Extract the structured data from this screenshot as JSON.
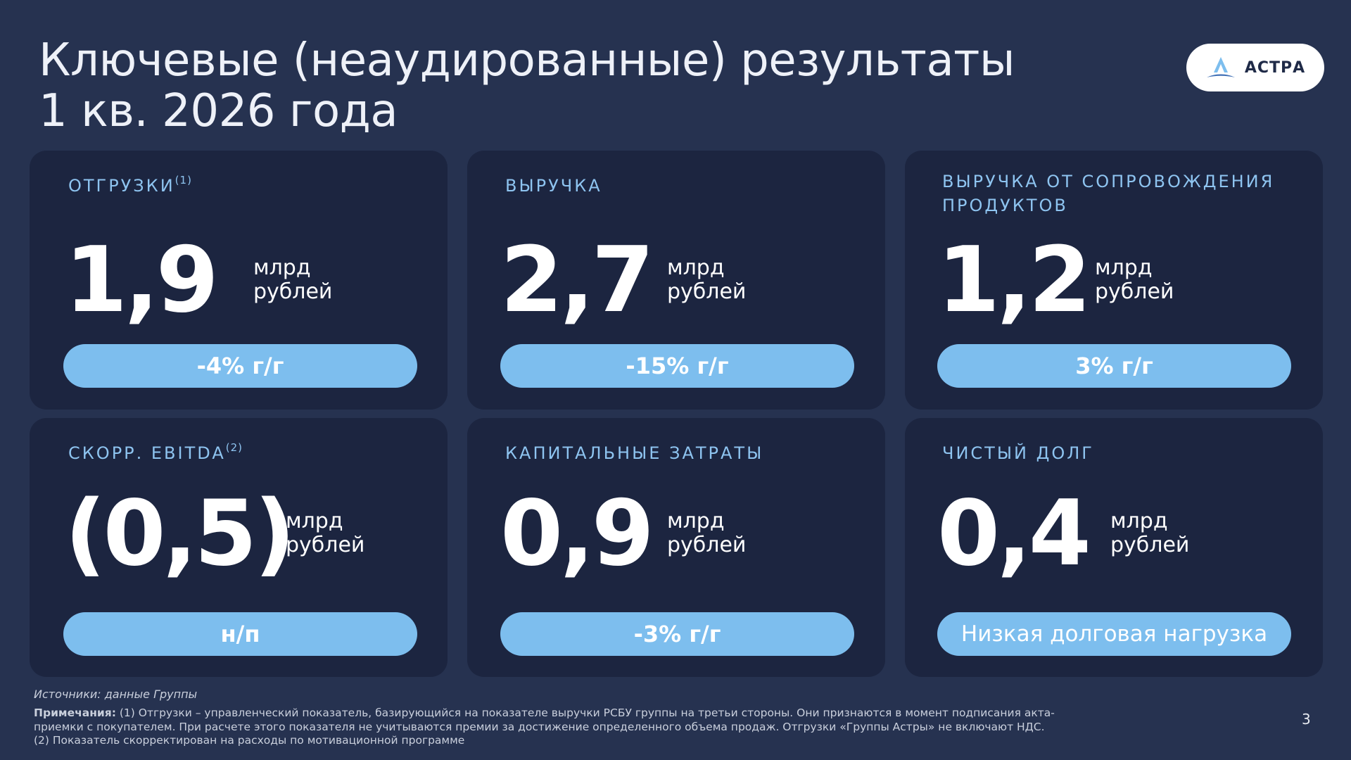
{
  "slide": {
    "title_line1": "Ключевые (неаудированные) результаты",
    "title_line2": "1 кв. 2026 года",
    "logo_text": "АСТРА",
    "page_number": "3"
  },
  "colors": {
    "background": "#263250",
    "card": "#1c2540",
    "label": "#8ec4f0",
    "pill": "#7dbeee"
  },
  "cards": [
    {
      "label": "ОТГРУЗКИ",
      "label_sup": "(1)",
      "value": "1,9",
      "unit_line1": "млрд",
      "unit_line2": "рублей",
      "pill": "-4% г/г"
    },
    {
      "label": "ВЫРУЧКА",
      "label_sup": "",
      "value": "2,7",
      "unit_line1": "млрд",
      "unit_line2": "рублей",
      "pill": "-15% г/г"
    },
    {
      "label": "ВЫРУЧКА ОТ СОПРОВОЖДЕНИЯ ПРОДУКТОВ",
      "label_sup": "",
      "value": "1,2",
      "unit_line1": "млрд",
      "unit_line2": "рублей",
      "pill": "3% г/г"
    },
    {
      "label": "СКОРР. EBITDA",
      "label_sup": "(2)",
      "value": "(0,5)",
      "unit_line1": "млрд",
      "unit_line2": "рублей",
      "pill": "н/п"
    },
    {
      "label": "КАПИТАЛЬНЫЕ ЗАТРАТЫ",
      "label_sup": "",
      "value": "0,9",
      "unit_line1": "млрд",
      "unit_line2": "рублей",
      "pill": "-3% г/г"
    },
    {
      "label": "ЧИСТЫЙ ДОЛГ",
      "label_sup": "",
      "value": "0,4",
      "unit_line1": "млрд",
      "unit_line2": "рублей",
      "pill": "Низкая долговая нагрузка"
    }
  ],
  "footer": {
    "source": "Источники: данные Группы",
    "notes_label": "Примечания:",
    "notes_line1": "(1) Отгрузки – управленческий показатель, базирующийся на показателе выручки РСБУ группы на третьи стороны. Они признаются в момент подписания акта-",
    "notes_line2": "приемки с покупателем. При расчете этого показателя не учитываются премии за достижение определенного объема продаж. Отгрузки «Группы Астры» не включают НДС.",
    "notes_line3": "(2) Показатель скорректирован на расходы по мотивационной программе"
  }
}
